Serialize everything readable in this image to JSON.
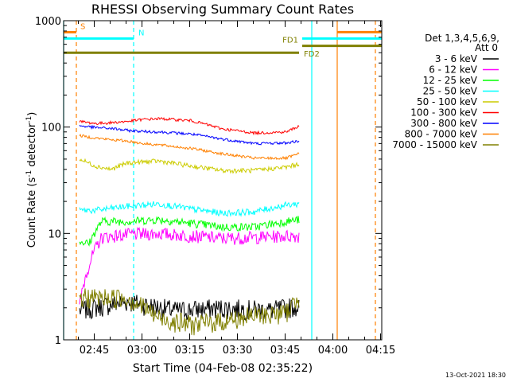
{
  "chart_data": {
    "type": "line",
    "title": "RHESSI Observing Summary Count Rates",
    "xlabel": "Start Time (04-Feb-08 02:35:22)",
    "ylabel": "Count Rate (s",
    "ylabel_sup": "-1",
    "ylabel_mid": " detector",
    "ylabel_end": ")",
    "y_scale": "log",
    "ylim": [
      1,
      1000
    ],
    "y_ticks": [
      {
        "value": 1,
        "label": "1"
      },
      {
        "value": 10,
        "label": "10"
      },
      {
        "value": 100,
        "label": "100"
      },
      {
        "value": 1000,
        "label": "1000"
      }
    ],
    "xlim_minutes": [
      0,
      100
    ],
    "x_ticks": [
      {
        "minute": 9.63,
        "label": "02:45"
      },
      {
        "minute": 24.63,
        "label": "03:00"
      },
      {
        "minute": 39.63,
        "label": "03:15"
      },
      {
        "minute": 54.63,
        "label": "03:30"
      },
      {
        "minute": 69.63,
        "label": "03:45"
      },
      {
        "minute": 84.63,
        "label": "04:00"
      },
      {
        "minute": 99.63,
        "label": "04:15"
      }
    ],
    "legend_header": [
      "Det 1,3,4,5,6,9,",
      "Att 0"
    ],
    "legend_placement": "right of plot",
    "series": [
      {
        "name": "3 - 6 keV",
        "color": "#000000",
        "x": [
          5,
          20,
          35,
          50,
          65,
          74
        ],
        "y": [
          1.9,
          2.3,
          1.9,
          2.0,
          1.9,
          2.1
        ]
      },
      {
        "name": "6 - 12 keV",
        "color": "#ff00ff",
        "x": [
          5,
          12,
          20,
          30,
          40,
          50,
          60,
          70,
          74
        ],
        "y": [
          2.0,
          9.2,
          9.8,
          10.0,
          9.5,
          9.0,
          9.2,
          9.5,
          9.5
        ]
      },
      {
        "name": "12 - 25 keV",
        "color": "#00ff00",
        "x": [
          5,
          8,
          12,
          20,
          30,
          40,
          50,
          60,
          70,
          74
        ],
        "y": [
          8.5,
          8.0,
          13.0,
          13.0,
          13.5,
          12.5,
          11.5,
          11.5,
          13.0,
          13.5
        ]
      },
      {
        "name": "25 - 50 keV",
        "color": "#00ffff",
        "x": [
          5,
          10,
          20,
          30,
          40,
          50,
          60,
          70,
          74
        ],
        "y": [
          16.5,
          16.5,
          18.0,
          19.0,
          17.0,
          15.5,
          16.0,
          18.5,
          19.0
        ]
      },
      {
        "name": "50 - 100 keV",
        "color": "#cccc00",
        "x": [
          5,
          10,
          15,
          20,
          25,
          30,
          40,
          50,
          60,
          70,
          74
        ],
        "y": [
          50,
          43,
          40,
          46,
          47,
          48,
          43,
          39,
          39,
          42,
          45
        ]
      },
      {
        "name": "100 - 300 keV",
        "color": "#ff0000",
        "x": [
          5,
          10,
          15,
          20,
          25,
          30,
          40,
          50,
          60,
          70,
          74
        ],
        "y": [
          113,
          108,
          110,
          113,
          118,
          120,
          115,
          96,
          88,
          90,
          102
        ]
      },
      {
        "name": "300 - 800 keV",
        "color": "#0000ff",
        "x": [
          5,
          10,
          15,
          20,
          25,
          30,
          40,
          50,
          60,
          70,
          74
        ],
        "y": [
          103,
          99,
          97,
          93,
          91,
          90,
          86,
          77,
          70,
          71,
          74
        ]
      },
      {
        "name": "800 - 7000 keV",
        "color": "#ff8000",
        "x": [
          5,
          10,
          15,
          20,
          25,
          30,
          40,
          50,
          60,
          70,
          74
        ],
        "y": [
          83,
          79,
          76,
          74,
          70,
          68,
          63,
          56,
          51,
          51,
          56
        ]
      },
      {
        "name": "7000 - 15000 keV",
        "color": "#808000",
        "x": [
          5,
          10,
          20,
          30,
          40,
          50,
          60,
          70,
          74
        ],
        "y": [
          2.5,
          2.5,
          2.5,
          1.6,
          1.4,
          1.5,
          1.7,
          1.8,
          2.5
        ]
      }
    ],
    "markers": [
      {
        "label": "S",
        "color": "#ff8000",
        "y": 780,
        "x0": 0,
        "x1": 4
      },
      {
        "label": "N",
        "color": "#00ffff",
        "y": 680,
        "x0": 0,
        "x1": 22
      },
      {
        "label": "FD1",
        "color": "#808000",
        "y": 580,
        "x0": 75,
        "x1": 100
      },
      {
        "label": "FD2",
        "color": "#808000",
        "y": 500,
        "x0": 0,
        "x1": 74
      }
    ],
    "extra_lines": [
      {
        "color": "#00ffff",
        "y": 680,
        "x0": 75,
        "x1": 100
      },
      {
        "color": "#ff8000",
        "y": 780,
        "x0": 86,
        "x1": 100
      }
    ],
    "vlines": [
      {
        "x": 0,
        "color": "#00ffff",
        "dashed": false
      },
      {
        "x": 4,
        "color": "#ff8000",
        "dashed": true
      },
      {
        "x": 22,
        "color": "#00ffff",
        "dashed": true
      },
      {
        "x": 78,
        "color": "#00ffff",
        "dashed": false
      },
      {
        "x": 86,
        "color": "#ff8000",
        "dashed": false
      },
      {
        "x": 98,
        "color": "#ff8000",
        "dashed": true
      }
    ],
    "timestamp": "13-Oct-2021 18:30"
  }
}
